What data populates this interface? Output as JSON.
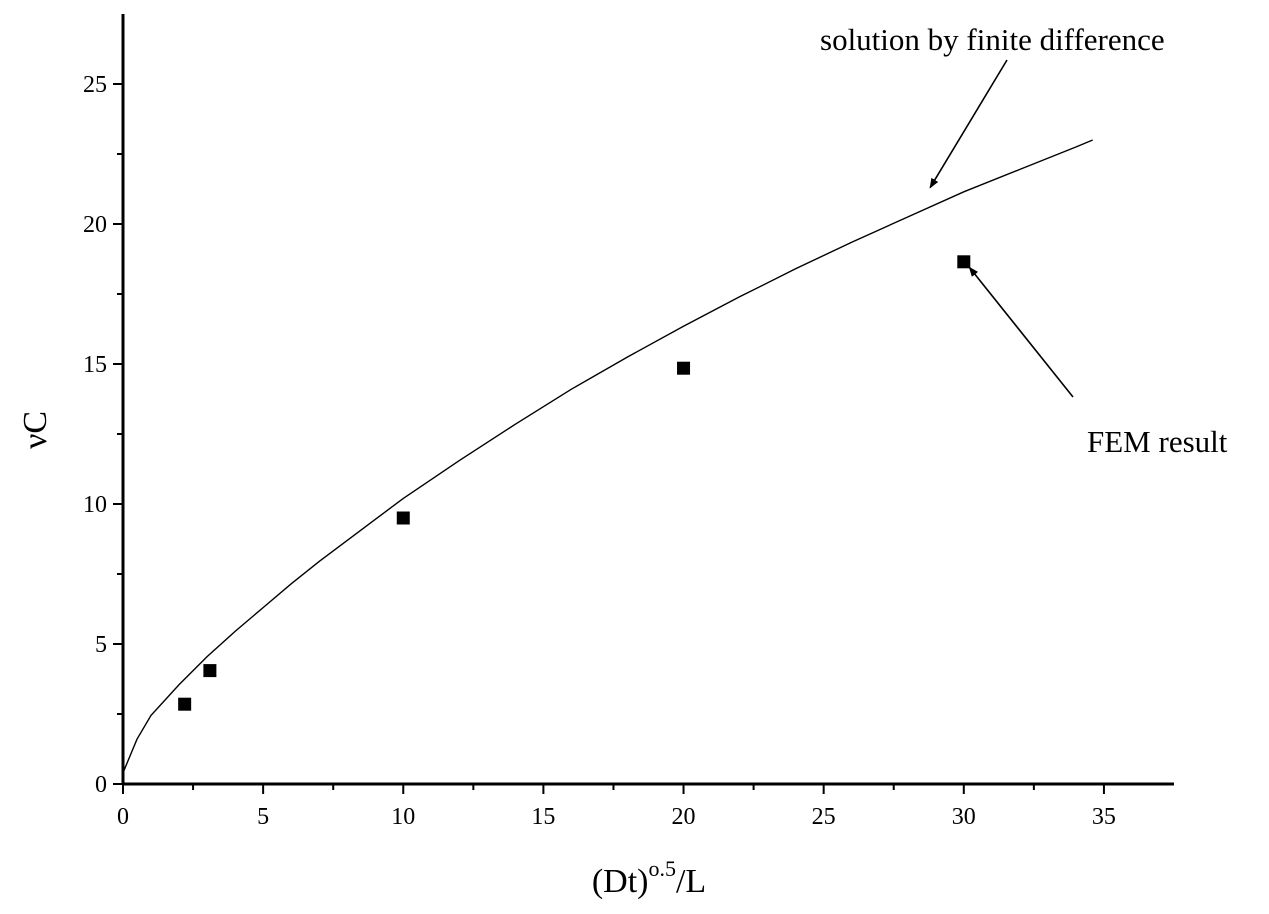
{
  "chart_data": {
    "type": "scatter",
    "title": "",
    "xlabel": {
      "base": "(Dt)",
      "exp": "o.5",
      "tail": "/L"
    },
    "ylabel": "νC",
    "xlim": [
      0,
      37.5
    ],
    "ylim": [
      0,
      27.5
    ],
    "x_ticks": [
      0,
      5,
      10,
      15,
      20,
      25,
      30,
      35
    ],
    "y_ticks": [
      0,
      5,
      10,
      15,
      20,
      25
    ],
    "grid": false,
    "legend": "none",
    "series": [
      {
        "kind": "line",
        "points": [
          [
            0,
            0.4
          ],
          [
            0.5,
            1.6
          ],
          [
            1,
            2.45
          ],
          [
            2,
            3.55
          ],
          [
            3,
            4.55
          ],
          [
            4,
            5.45
          ],
          [
            5,
            6.3
          ],
          [
            6,
            7.15
          ],
          [
            7,
            7.95
          ],
          [
            8,
            8.7
          ],
          [
            9,
            9.45
          ],
          [
            10,
            10.2
          ],
          [
            12,
            11.55
          ],
          [
            14,
            12.85
          ],
          [
            16,
            14.1
          ],
          [
            18,
            15.25
          ],
          [
            20,
            16.35
          ],
          [
            22,
            17.4
          ],
          [
            24,
            18.4
          ],
          [
            26,
            19.35
          ],
          [
            28,
            20.25
          ],
          [
            30,
            21.15
          ],
          [
            32,
            21.95
          ],
          [
            34,
            22.75
          ],
          [
            34.6,
            23.0
          ]
        ]
      },
      {
        "kind": "markers",
        "marker": "square",
        "x": [
          2.2,
          3.1,
          10,
          20,
          30
        ],
        "y": [
          2.85,
          4.05,
          9.5,
          14.85,
          18.65
        ]
      }
    ],
    "annotations": [
      {
        "text": "solution by finite difference",
        "arrow_to": [
          28.8,
          21.3
        ]
      },
      {
        "text": "FEM result",
        "arrow_to": [
          30.2,
          18.45
        ]
      }
    ]
  }
}
